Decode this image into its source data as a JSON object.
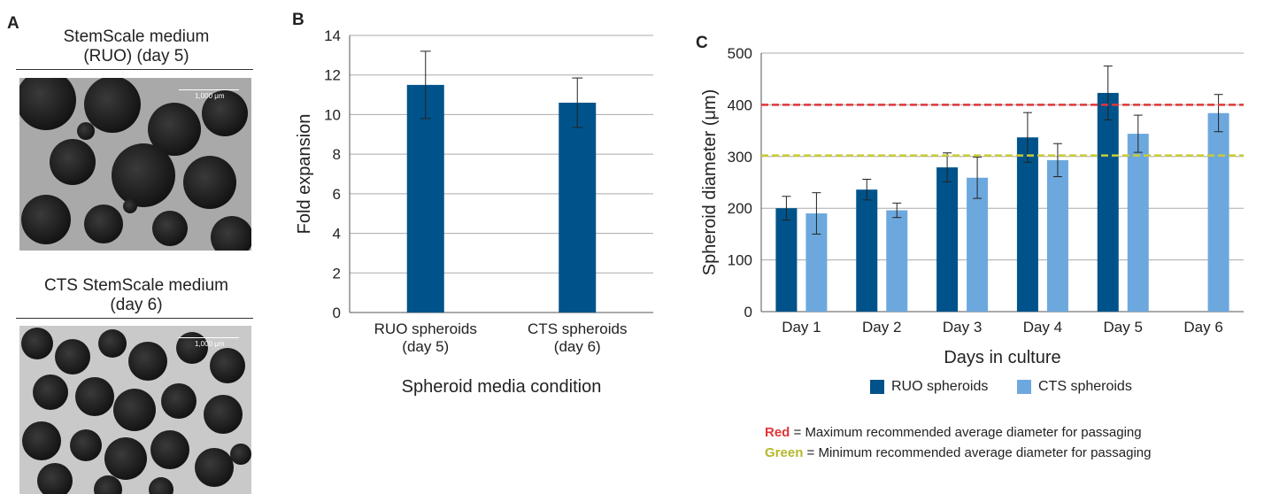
{
  "panels": {
    "a": "A",
    "b": "B",
    "c": "C"
  },
  "photos": [
    {
      "title_line1": "StemScale medium",
      "title_line2": "(RUO) (day 5)",
      "scale_label": "1,000 μm"
    },
    {
      "title_line1": "CTS StemScale medium",
      "title_line2": "(day 6)",
      "scale_label": "1,000 μm"
    }
  ],
  "colors": {
    "ruo": "#00538a",
    "cts": "#6ca8de",
    "red_line": "#e0363a",
    "green_line": "#c9cc34",
    "grid": "#a0a0a0"
  },
  "chart_data": [
    {
      "type": "bar",
      "categories": [
        [
          "RUO spheroids",
          "(day 5)"
        ],
        [
          "CTS spheroids",
          "(day 6)"
        ]
      ],
      "values": [
        11.5,
        10.6
      ],
      "error": [
        1.7,
        1.25
      ],
      "xlabel": "Spheroid media condition",
      "ylabel": "Fold expansion",
      "ylim": [
        0,
        14
      ],
      "yticks": [
        0,
        2,
        4,
        6,
        8,
        10,
        12,
        14
      ],
      "grid": true
    },
    {
      "type": "bar",
      "categories": [
        "Day 1",
        "Day 2",
        "Day 3",
        "Day 4",
        "Day 5",
        "Day 6"
      ],
      "series": [
        {
          "name": "RUO spheroids",
          "values": [
            200,
            236,
            279,
            337,
            423,
            null
          ],
          "error": [
            23,
            20,
            28,
            48,
            52,
            null
          ]
        },
        {
          "name": "CTS spheroids",
          "values": [
            190,
            196,
            259,
            293,
            344,
            384
          ],
          "error": [
            40,
            14,
            40,
            32,
            36,
            36
          ]
        }
      ],
      "reference_lines": [
        {
          "value": 400,
          "color": "red"
        },
        {
          "value": 302,
          "color": "green"
        }
      ],
      "xlabel": "Days in culture",
      "ylabel": "Spheroid diameter (μm)",
      "ylim": [
        0,
        500
      ],
      "yticks": [
        0,
        100,
        200,
        300,
        400,
        500
      ],
      "grid": true,
      "legend_position": "bottom"
    }
  ],
  "legend_notes": [
    {
      "keyword": "Red",
      "text": " = Maximum recommended average diameter for passaging"
    },
    {
      "keyword": "Green",
      "text": " = Minimum recommended average diameter for passaging"
    }
  ]
}
